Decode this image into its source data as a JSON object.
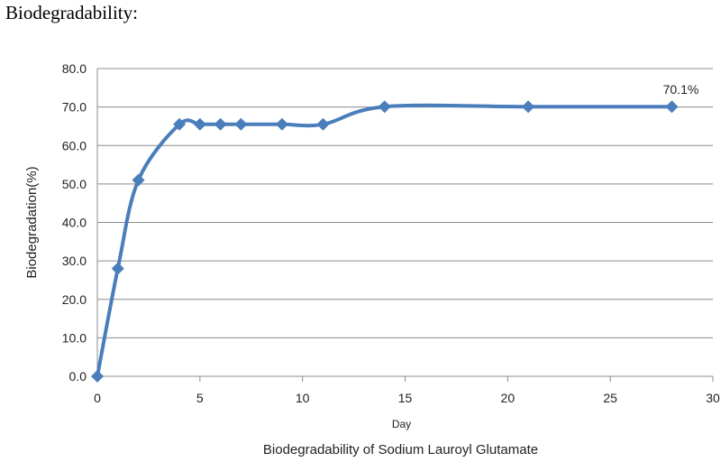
{
  "heading": "Biodegradability:",
  "chart_data": {
    "type": "line",
    "title": "Biodegradability of Sodium Lauroyl Glutamate",
    "xlabel": "Day",
    "ylabel": "Biodegradation(%)",
    "xlim": [
      0,
      30
    ],
    "ylim": [
      0,
      80
    ],
    "x_ticks": [
      "0",
      "5",
      "10",
      "15",
      "20",
      "25",
      "30"
    ],
    "y_ticks": [
      "0.0",
      "10.0",
      "20.0",
      "30.0",
      "40.0",
      "50.0",
      "60.0",
      "70.0",
      "80.0"
    ],
    "grid": true,
    "color": "#4a7ebb",
    "series": [
      {
        "x": [
          0,
          1,
          2,
          4,
          5,
          6,
          7,
          9,
          11,
          14,
          21,
          28
        ],
        "y": [
          0,
          28,
          51,
          65.5,
          65.5,
          65.5,
          65.5,
          65.5,
          65.5,
          70.1,
          70.1,
          70.1
        ]
      }
    ],
    "annotation": "70.1%"
  }
}
